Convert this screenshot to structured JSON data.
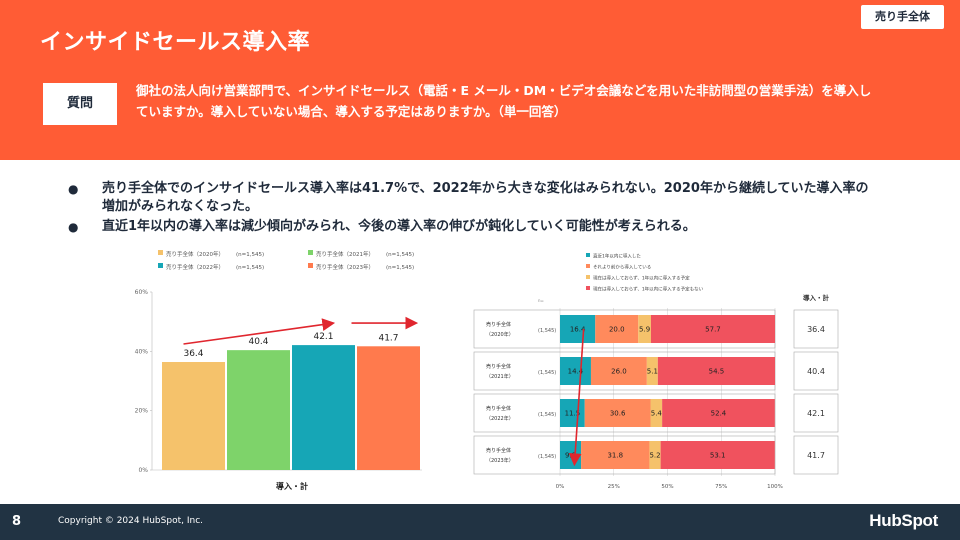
{
  "header": {
    "title": "インサイドセールス導入率",
    "tag": "売り手全体",
    "question_label": "質問",
    "question_text": "御社の法人向け営業部門で、インサイドセールス（電話・E メール・DM・ビデオ会議などを用いた非訪問型の営業手法）を導入していますか。導入していない場合、導入する予定はありますか。（単一回答）"
  },
  "bullets": [
    "売り手全体でのインサイドセールス導入率は41.7%で、2022年から大きな変化はみられない。2020年から継続していた導入率の増加がみられなくなった。",
    "直近1年以内の導入率は減少傾向がみられ、今後の導入率の伸びが鈍化していく可能性が考えられる。"
  ],
  "chart_data": [
    {
      "type": "bar",
      "title": "",
      "xlabel": "導入・計",
      "ylabel": "",
      "ylim": [
        0,
        60
      ],
      "yticks": [
        "0%",
        "20%",
        "40%",
        "60%"
      ],
      "categories": [
        "売り手全体（2020年）(n=1,545)",
        "売り手全体（2021年）(n=1,545)",
        "売り手全体（2022年）(n=1,545)",
        "売り手全体（2023年）(n=1,545)"
      ],
      "series": [
        {
          "name": "売り手全体（2020年）",
          "n": "(n=1,545)",
          "value": 36.4,
          "label": "36.4",
          "color": "#f5c26b"
        },
        {
          "name": "売り手全体（2021年）",
          "n": "(n=1,545)",
          "value": 40.4,
          "label": "40.4",
          "color": "#7ed36a"
        },
        {
          "name": "売り手全体（2022年）",
          "n": "(n=1,545)",
          "value": 42.1,
          "label": "42.1",
          "color": "#16a6b6"
        },
        {
          "name": "売り手全体（2023年）",
          "n": "(n=1,545)",
          "value": 41.7,
          "label": "41.7",
          "color": "#ff7a4d"
        }
      ]
    },
    {
      "type": "bar",
      "stacked": true,
      "orientation": "horizontal",
      "n_header": "n=",
      "total_header": "導入・計",
      "xticks": [
        "0%",
        "25%",
        "50%",
        "75%",
        "100%"
      ],
      "legend": [
        {
          "name": "直近1年以内に導入した",
          "color": "#16a6b6"
        },
        {
          "name": "それより前から導入している",
          "color": "#ff8a5c"
        },
        {
          "name": "現在は導入しておらず、1年以内に導入する予定",
          "color": "#f5c26b"
        },
        {
          "name": "現在は導入しておらず、1年以内に導入する予定もない",
          "color": "#f0525e"
        }
      ],
      "rows": [
        {
          "label1": "売り手全体",
          "label2": "（2020年）",
          "n": "(1,545)",
          "values": [
            16.4,
            20.0,
            5.9,
            57.7
          ],
          "labels": [
            "16.4",
            "20.0",
            "5.9",
            "57.7"
          ],
          "total": "36.4"
        },
        {
          "label1": "売り手全体",
          "label2": "（2021年）",
          "n": "(1,545)",
          "values": [
            14.4,
            26.0,
            5.1,
            54.5
          ],
          "labels": [
            "14.4",
            "26.0",
            "5.1",
            "54.5"
          ],
          "total": "40.4"
        },
        {
          "label1": "売り手全体",
          "label2": "（2022年）",
          "n": "(1,545)",
          "values": [
            11.5,
            30.6,
            5.4,
            52.4
          ],
          "labels": [
            "11.5",
            "30.6",
            "5.4",
            "52.4"
          ],
          "total": "42.1"
        },
        {
          "label1": "売り手全体",
          "label2": "（2023年）",
          "n": "(1,545)",
          "values": [
            9.8,
            31.8,
            5.2,
            53.1
          ],
          "labels": [
            "9.8",
            "31.8",
            "5.2",
            "53.1"
          ],
          "total": "41.7"
        }
      ]
    }
  ],
  "footer": {
    "page": "8",
    "copyright": "Copyright © 2024 HubSpot, Inc.",
    "logo": "HubSpot"
  },
  "colors": {
    "accent": "#ff5c35",
    "navy": "#213343",
    "arrow": "#e0262e"
  }
}
